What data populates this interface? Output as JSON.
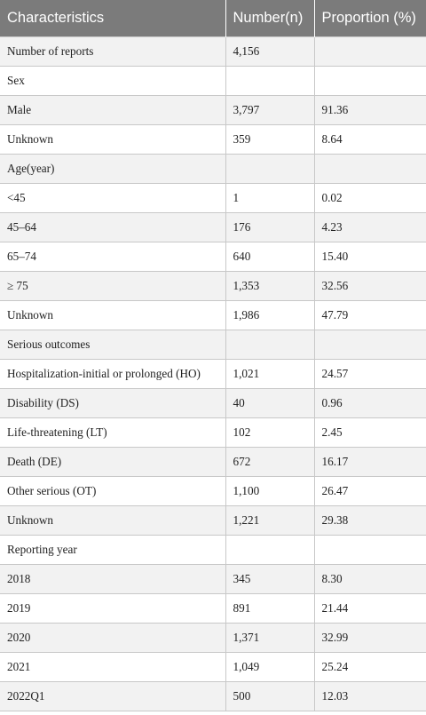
{
  "table": {
    "headers": [
      "Characteristics",
      "Number(n)",
      "Proportion (%)"
    ],
    "rows": [
      [
        "Number of reports",
        "4,156",
        ""
      ],
      [
        "Sex",
        "",
        ""
      ],
      [
        "Male",
        "3,797",
        "91.36"
      ],
      [
        "Unknown",
        "359",
        "8.64"
      ],
      [
        "Age(year)",
        "",
        ""
      ],
      [
        "<45",
        "1",
        "0.02"
      ],
      [
        "45–64",
        "176",
        "4.23"
      ],
      [
        "65–74",
        "640",
        "15.40"
      ],
      [
        "≥ 75",
        "1,353",
        "32.56"
      ],
      [
        "Unknown",
        "1,986",
        "47.79"
      ],
      [
        "Serious outcomes",
        "",
        ""
      ],
      [
        "Hospitalization-initial or prolonged (HO)",
        "1,021",
        "24.57"
      ],
      [
        "Disability (DS)",
        "40",
        "0.96"
      ],
      [
        "Life-threatening (LT)",
        "102",
        "2.45"
      ],
      [
        "Death (DE)",
        "672",
        "16.17"
      ],
      [
        "Other serious (OT)",
        "1,100",
        "26.47"
      ],
      [
        "Unknown",
        "1,221",
        "29.38"
      ],
      [
        "Reporting year",
        "",
        ""
      ],
      [
        "2018",
        "345",
        "8.30"
      ],
      [
        "2019",
        "891",
        "21.44"
      ],
      [
        "2020",
        "1,371",
        "32.99"
      ],
      [
        "2021",
        "1,049",
        "25.24"
      ],
      [
        "2022Q1",
        "500",
        "12.03"
      ]
    ]
  }
}
